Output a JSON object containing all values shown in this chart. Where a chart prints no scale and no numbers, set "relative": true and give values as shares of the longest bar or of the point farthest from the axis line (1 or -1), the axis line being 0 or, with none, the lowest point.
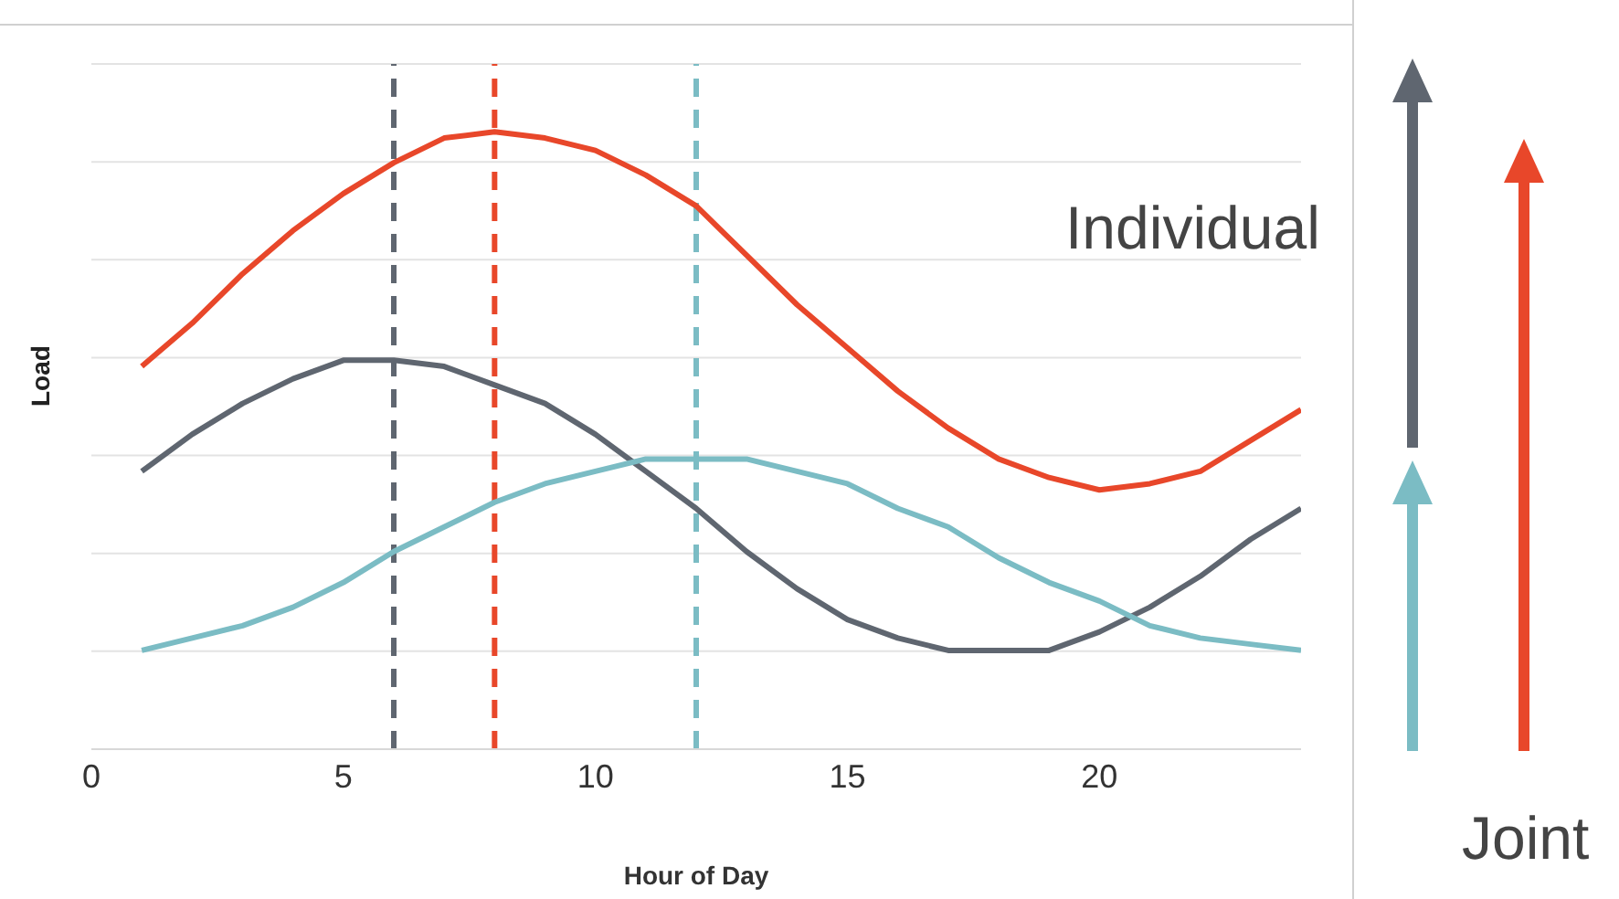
{
  "chart_data": {
    "type": "line",
    "relative": true,
    "xlabel": "Hour of Day",
    "ylabel": "Load",
    "x": [
      1,
      2,
      3,
      4,
      5,
      6,
      7,
      8,
      9,
      10,
      11,
      12,
      13,
      14,
      15,
      16,
      17,
      18,
      19,
      20,
      21,
      22,
      23,
      24
    ],
    "xlim": [
      0,
      24
    ],
    "xticks": [
      0,
      5,
      10,
      15,
      20
    ],
    "grid": "y",
    "marker": "none",
    "line_style": "solid",
    "series": [
      {
        "color": "#e8472a",
        "values": [
          0.62,
          0.69,
          0.77,
          0.84,
          0.9,
          0.95,
          0.99,
          1,
          0.99,
          0.97,
          0.93,
          0.88,
          0.8,
          0.72,
          0.65,
          0.58,
          0.52,
          0.47,
          0.44,
          0.42,
          0.43,
          0.45,
          0.5,
          0.55
        ]
      },
      {
        "color": "#5f6670",
        "values": [
          0.45,
          0.51,
          0.56,
          0.6,
          0.63,
          0.63,
          0.62,
          0.59,
          0.56,
          0.51,
          0.45,
          0.39,
          0.32,
          0.26,
          0.21,
          0.18,
          0.16,
          0.16,
          0.16,
          0.19,
          0.23,
          0.28,
          0.34,
          0.39
        ]
      },
      {
        "color": "#7bbcc4",
        "values": [
          0.16,
          0.18,
          0.2,
          0.23,
          0.27,
          0.32,
          0.36,
          0.4,
          0.43,
          0.45,
          0.47,
          0.47,
          0.47,
          0.45,
          0.43,
          0.39,
          0.36,
          0.31,
          0.27,
          0.24,
          0.2,
          0.18,
          0.17,
          0.16
        ]
      }
    ],
    "ref_lines": [
      {
        "axis": "x",
        "value": 6,
        "color": "#5f6670",
        "line_style": "dashed"
      },
      {
        "axis": "x",
        "value": 8,
        "color": "#e8472a",
        "line_style": "dashed"
      },
      {
        "axis": "x",
        "value": 12,
        "color": "#7bbcc4",
        "line_style": "dashed"
      }
    ],
    "annotations": [
      "Individual",
      "Joint"
    ]
  }
}
